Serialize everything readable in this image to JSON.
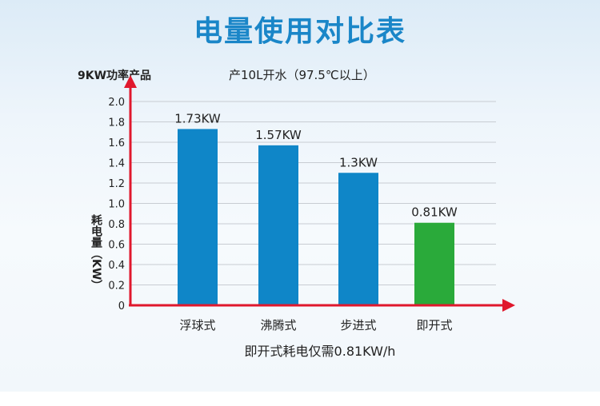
{
  "title": "电量使用对比表",
  "product_label": "9KW功率产品",
  "subtitle": "产10L开水（97.5℃以上）",
  "ylabel": "耗电量（KW）",
  "footnote": "即开式耗电仅需0.81KW/h",
  "chart_data": {
    "type": "bar",
    "categories": [
      "浮球式",
      "沸腾式",
      "步进式",
      "即开式"
    ],
    "values": [
      1.73,
      1.57,
      1.3,
      0.81
    ],
    "data_labels": [
      "1.73KW",
      "1.57KW",
      "1.3KW",
      "0.81KW"
    ],
    "bar_colors": [
      "#0f86c8",
      "#0f86c8",
      "#0f86c8",
      "#2aaa3a"
    ],
    "axis_color": "#e0182d",
    "ylim": [
      0,
      2.0
    ],
    "yticks": [
      "0",
      "0.2",
      "0.4",
      "0.6",
      "0.8",
      "1.0",
      "1.2",
      "1.4",
      "1.6",
      "1.8",
      "2.0"
    ],
    "grid": true,
    "ylabel": "耗电量（KW）"
  }
}
